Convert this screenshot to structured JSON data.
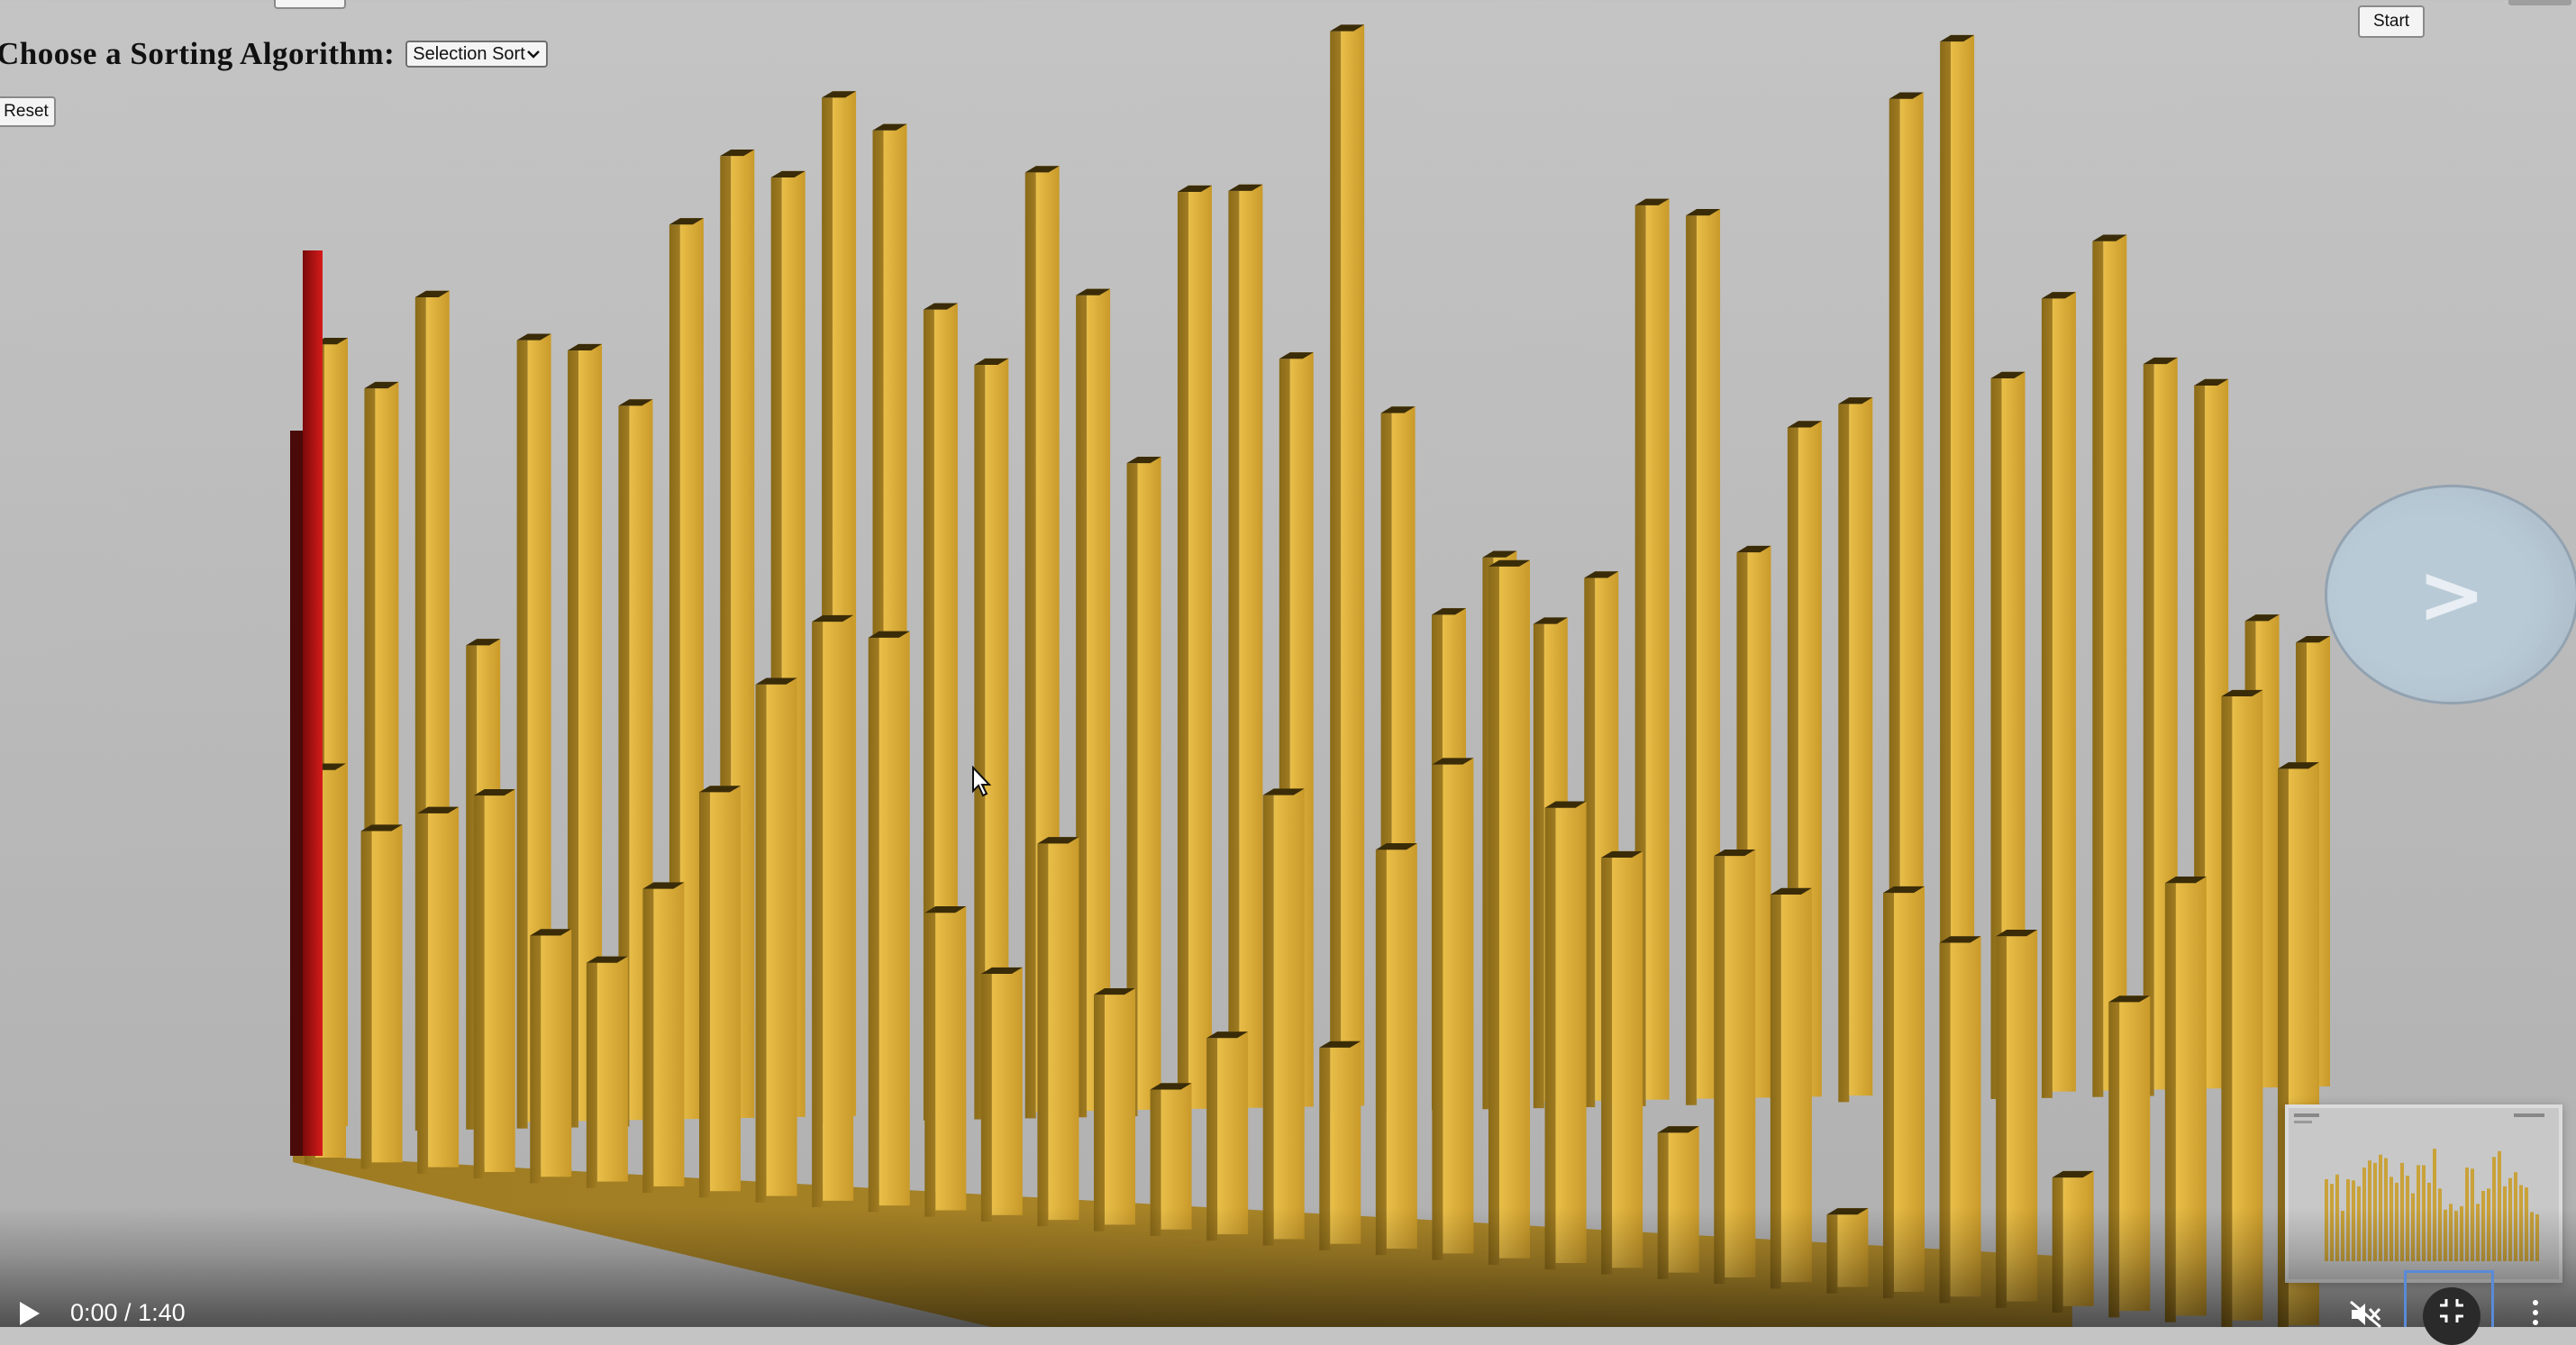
{
  "controls": {
    "algorithm_label": "Choose a Sorting Algorithm:",
    "algorithm_selected": "Selection Sort",
    "reset_label": "Reset",
    "start_label": "Start",
    "next_label": ">"
  },
  "video": {
    "time_display": "0:00 / 1:40",
    "muted": true
  },
  "visualization": {
    "bar_color": "#d9ad3c",
    "highlight_color": "#c0141a",
    "background_color": "#c0c0c0",
    "bar_heights_back": [
      0.7,
      0.66,
      0.74,
      0.43,
      0.7,
      0.69,
      0.64,
      0.8,
      0.86,
      0.84,
      0.91,
      0.88,
      0.72,
      0.67,
      0.84,
      0.73,
      0.58,
      0.82,
      0.82,
      0.67,
      0.96,
      0.62,
      0.44,
      0.49,
      0.43,
      0.47,
      0.8,
      0.79,
      0.49,
      0.6,
      0.62,
      0.89,
      0.94,
      0.64,
      0.71,
      0.76,
      0.65,
      0.63,
      0.42,
      0.4
    ],
    "bar_heights_front": [
      0.35,
      0.3,
      0.32,
      0.34,
      0.22,
      0.2,
      0.27,
      0.36,
      0.46,
      0.52,
      0.51,
      0.27,
      0.22,
      0.34,
      0.21,
      0.13,
      0.18,
      0.4,
      0.18,
      0.36,
      0.44,
      0.62,
      0.41,
      0.37,
      0.13,
      0.38,
      0.35,
      0.07,
      0.36,
      0.32,
      0.33,
      0.12,
      0.28,
      0.39,
      0.56,
      0.5
    ]
  }
}
